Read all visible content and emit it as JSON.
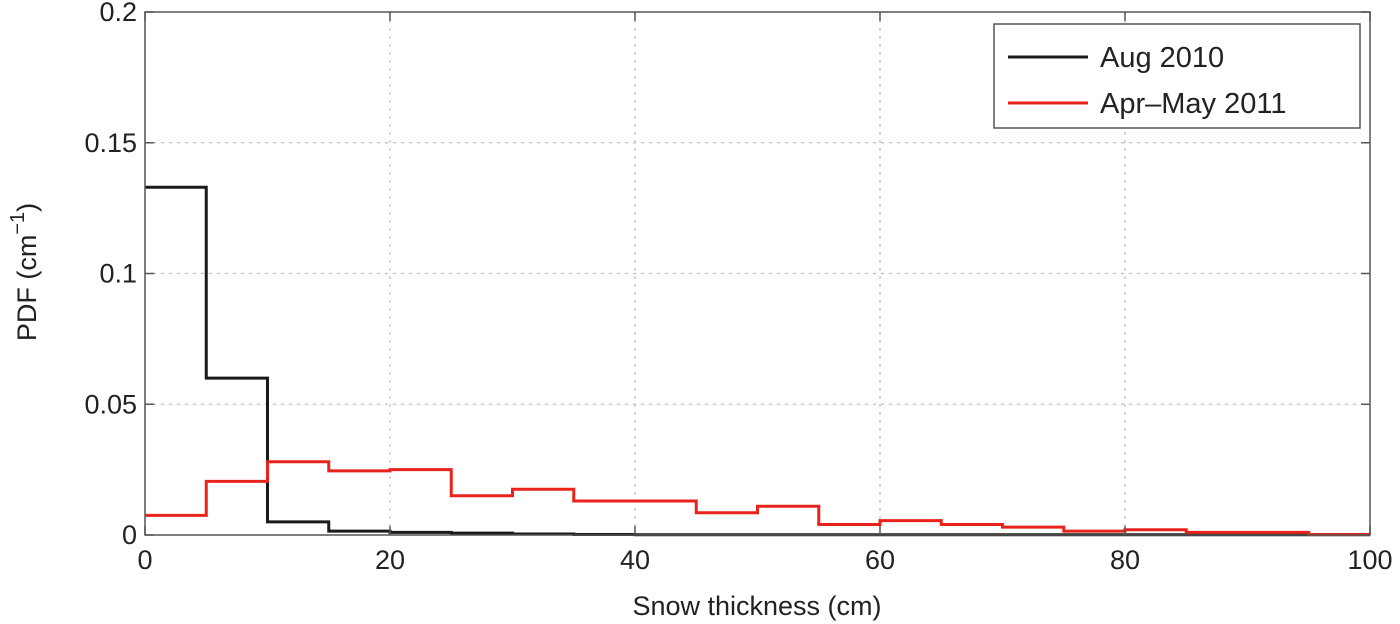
{
  "chart_data": {
    "type": "line",
    "step": true,
    "xlabel": "Snow thickness (cm)",
    "ylabel_main": "PDF (cm",
    "ylabel_exp": "−1",
    "ylabel_close": ")",
    "xlim": [
      0,
      100
    ],
    "ylim": [
      0,
      0.2
    ],
    "xticks": [
      0,
      20,
      40,
      60,
      80,
      100
    ],
    "xtick_labels": [
      "0",
      "20",
      "40",
      "60",
      "80",
      "100"
    ],
    "yticks": [
      0,
      0.05,
      0.1,
      0.15,
      0.2
    ],
    "ytick_labels": [
      "0",
      "0.05",
      "0.1",
      "0.15",
      "0.2"
    ],
    "grid": true,
    "legend_position": "top-right",
    "bin_edges": [
      0,
      5,
      10,
      15,
      20,
      25,
      30,
      35,
      40,
      45,
      50,
      55,
      60,
      65,
      70,
      75,
      80,
      85,
      90,
      95,
      100
    ],
    "series": [
      {
        "name": "Aug 2010",
        "color": "#1a1a1a",
        "values": [
          0.133,
          0.06,
          0.005,
          0.0015,
          0.001,
          0.0007,
          0.0004,
          0.0002,
          0.0001,
          0.0001,
          0.0001,
          0.0001,
          0.0001,
          0.0001,
          0.0001,
          0.0001,
          0.0001,
          0.0001,
          0.0001,
          0.0001
        ]
      },
      {
        "name": "Apr–May 2011",
        "color": "#e8231c",
        "values": [
          0.0075,
          0.0205,
          0.028,
          0.0245,
          0.025,
          0.015,
          0.0175,
          0.013,
          0.013,
          0.0085,
          0.011,
          0.004,
          0.0055,
          0.004,
          0.003,
          0.0015,
          0.002,
          0.001,
          0.001,
          0.0002
        ]
      }
    ]
  }
}
